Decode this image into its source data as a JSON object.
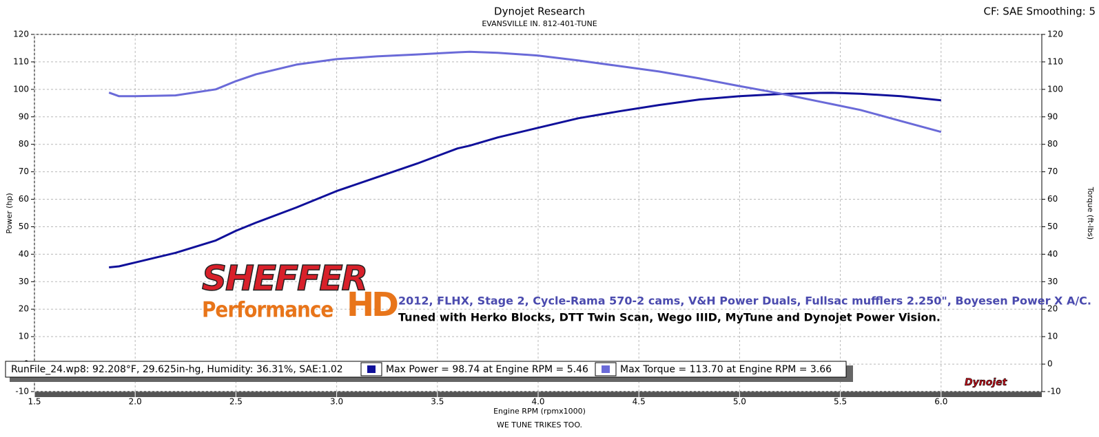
{
  "chart_data": {
    "type": "line",
    "title": "Dynojet Research",
    "subtitle": "EVANSVILLE IN. 812-401-TUNE",
    "header_right": "CF: SAE Smoothing: 5",
    "xlabel": "Engine RPM (rpmx1000)",
    "ylabel": "Power (hp)",
    "y2label": "Torque (ft-lbs)",
    "footer": "WE TUNE TRIKES TOO.",
    "run_info": "RunFile_24.wp8: 92.208°F, 29.625in-hg, Humidity: 36.31%, SAE:1.02",
    "annotations": [
      "SHEFFER",
      "Performance",
      "HD",
      "2012, FLHX, Stage 2, Cycle-Rama 570-2 cams, V&H Power Duals, Fullsac mufflers 2.250\", Boyesen Power X A/C.",
      "Tuned with Herko Blocks, DTT Twin Scan, Wego IIID, MyTune and Dynojet Power Vision.",
      "Dynojet"
    ],
    "x": [
      1.87,
      1.92,
      2.0,
      2.2,
      2.4,
      2.5,
      2.6,
      2.8,
      3.0,
      3.2,
      3.4,
      3.6,
      3.66,
      3.8,
      4.0,
      4.2,
      4.4,
      4.6,
      4.8,
      5.0,
      5.2,
      5.4,
      5.46,
      5.6,
      5.8,
      6.0
    ],
    "series": [
      {
        "name": "Max Power = 98.74 at Engine RPM = 5.46",
        "color": "#10109a",
        "values": [
          35.2,
          35.6,
          37,
          40.5,
          45,
          48.5,
          51.5,
          57,
          63,
          68,
          73,
          78.5,
          79.5,
          82.5,
          86,
          89.5,
          92,
          94.3,
          96.3,
          97.5,
          98.3,
          98.7,
          98.74,
          98.4,
          97.5,
          96
        ]
      },
      {
        "name": "Max Torque = 113.70 at Engine RPM = 3.66",
        "color": "#6a6ad8",
        "axis": "y2",
        "values": [
          98.8,
          97.5,
          97.5,
          97.8,
          100,
          103,
          105.5,
          109,
          111,
          112,
          112.7,
          113.5,
          113.7,
          113.3,
          112.3,
          110.5,
          108.5,
          106.5,
          104,
          101.2,
          98.5,
          95.5,
          94.6,
          92.5,
          88.5,
          84.5
        ]
      }
    ],
    "xlim": [
      1.5,
      6.5
    ],
    "xticks": [
      1.5,
      {
        "value": 2,
        "label": "2.0"
      },
      2.5,
      {
        "value": 3,
        "label": "3.0"
      },
      3.5,
      {
        "value": 4,
        "label": "4.0"
      },
      4.5,
      {
        "value": 5,
        "label": "5.0"
      },
      5.5,
      {
        "value": 6,
        "label": "6.0"
      }
    ],
    "ylim": [
      -10,
      120
    ],
    "yticks": [
      -10,
      0,
      10,
      20,
      30,
      40,
      50,
      60,
      70,
      80,
      90,
      100,
      110,
      120
    ],
    "y2lim": [
      -10,
      120
    ],
    "y2ticks": [
      -10,
      0,
      10,
      20,
      30,
      40,
      50,
      60,
      70,
      80,
      90,
      100,
      110,
      120
    ],
    "grid": true
  }
}
